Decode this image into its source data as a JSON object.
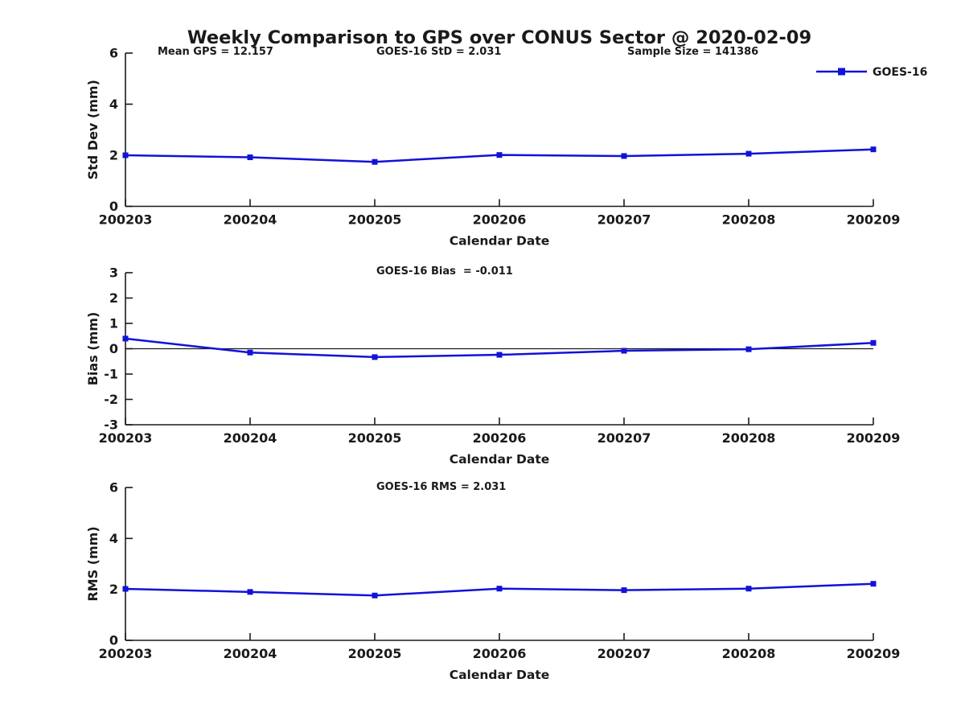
{
  "title": "Weekly Comparison to GPS over CONUS Sector @ 2020-02-09",
  "legend": {
    "label": "GOES-16"
  },
  "colors": {
    "line": "#1212d8",
    "axis": "#1a1a1a",
    "text": "#1a1a1a",
    "background": "#ffffff"
  },
  "chart_data": [
    {
      "type": "line",
      "categories": [
        "200203",
        "200204",
        "200205",
        "200206",
        "200207",
        "200208",
        "200209"
      ],
      "series": [
        {
          "name": "GOES-16",
          "values": [
            2.0,
            1.92,
            1.74,
            2.01,
            1.97,
            2.06,
            2.23
          ]
        }
      ],
      "ylabel": "Std Dev (mm)",
      "xlabel": "Calendar Date",
      "ylim": [
        0,
        6
      ],
      "yticks": [
        0,
        2,
        4,
        6
      ],
      "zero_line": false,
      "grid": false,
      "annotations": [
        "Mean GPS = 12.157",
        "GOES-16 StD = 2.031",
        "Sample Size = 141386"
      ]
    },
    {
      "type": "line",
      "categories": [
        "200203",
        "200204",
        "200205",
        "200206",
        "200207",
        "200208",
        "200209"
      ],
      "series": [
        {
          "name": "GOES-16",
          "values": [
            0.4,
            -0.15,
            -0.33,
            -0.24,
            -0.08,
            -0.02,
            0.23
          ]
        }
      ],
      "ylabel": "Bias (mm)",
      "xlabel": "Calendar Date",
      "ylim": [
        -3,
        3
      ],
      "yticks": [
        3,
        2,
        1,
        0,
        -1,
        -2,
        -3
      ],
      "zero_line": true,
      "grid": false,
      "annotations": [
        "GOES-16 Bias  = -0.011"
      ]
    },
    {
      "type": "line",
      "categories": [
        "200203",
        "200204",
        "200205",
        "200206",
        "200207",
        "200208",
        "200209"
      ],
      "series": [
        {
          "name": "GOES-16",
          "values": [
            2.02,
            1.9,
            1.76,
            2.03,
            1.97,
            2.03,
            2.22
          ]
        }
      ],
      "ylabel": "RMS (mm)",
      "xlabel": "Calendar Date",
      "ylim": [
        0,
        6
      ],
      "yticks": [
        0,
        2,
        4,
        6
      ],
      "zero_line": false,
      "grid": false,
      "annotations": [
        "GOES-16 RMS = 2.031"
      ]
    }
  ]
}
